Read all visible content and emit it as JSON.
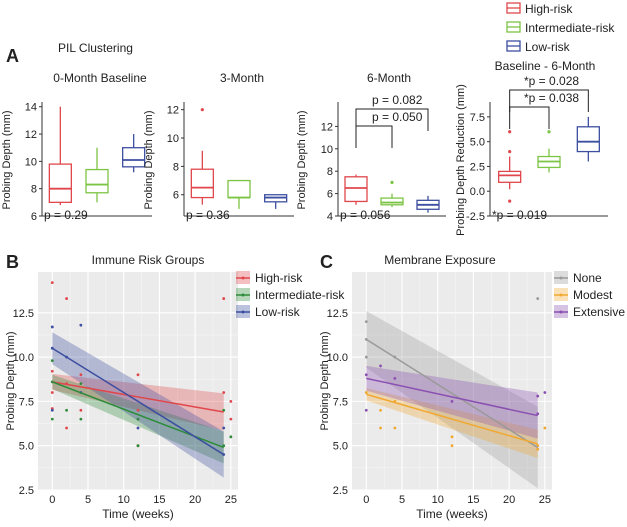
{
  "panel_letters": {
    "a": "A",
    "b": "B",
    "c": "C"
  },
  "panel_a_title": "PIL Clustering",
  "legend_top": [
    {
      "label": "High-risk",
      "color": "#e0474c"
    },
    {
      "label": "Intermediate-risk",
      "color": "#7cc444"
    },
    {
      "label": "Low-risk",
      "color": "#3d4fa0"
    }
  ],
  "chart_data": [
    {
      "type": "box",
      "title": "0-Month Baseline",
      "ylabel": "Probing Depth (mm)",
      "ylim": [
        6,
        14.2
      ],
      "yticks": [
        6,
        8,
        10,
        12,
        14
      ],
      "groups": [
        {
          "name": "High-risk",
          "whisker_low": 6.8,
          "q1": 7.0,
          "median": 8.0,
          "q3": 9.8,
          "whisker_high": 14.0,
          "outliers": []
        },
        {
          "name": "Intermediate-risk",
          "whisker_low": 7.0,
          "q1": 7.7,
          "median": 8.3,
          "q3": 9.4,
          "whisker_high": 11.0,
          "outliers": []
        },
        {
          "name": "Low-risk",
          "whisker_low": 9.2,
          "q1": 9.6,
          "median": 10.1,
          "q3": 11.0,
          "whisker_high": 12.0,
          "outliers": []
        }
      ],
      "annotations": [
        {
          "text": "p = 0.29"
        }
      ]
    },
    {
      "type": "box",
      "title": "3-Month",
      "ylabel": "Probing Depth (mm)",
      "ylim": [
        4.5,
        12.4
      ],
      "yticks": [
        6,
        8,
        10,
        12
      ],
      "groups": [
        {
          "name": "High-risk",
          "whisker_low": 5.3,
          "q1": 5.8,
          "median": 6.5,
          "q3": 7.8,
          "whisker_high": 9.1,
          "outliers": [
            12.0
          ]
        },
        {
          "name": "Intermediate-risk",
          "whisker_low": 5.0,
          "q1": 5.8,
          "median": 5.8,
          "q3": 7.0,
          "whisker_high": 7.0,
          "outliers": []
        },
        {
          "name": "Low-risk",
          "whisker_low": 5.0,
          "q1": 5.5,
          "median": 5.8,
          "q3": 6.0,
          "whisker_high": 6.0,
          "outliers": []
        }
      ],
      "annotations": [
        {
          "text": "p = 0.36"
        }
      ]
    },
    {
      "type": "box",
      "title": "6-Month",
      "ylabel": "Probing Depth (mm)",
      "ylim": [
        4.0,
        14.0
      ],
      "yticks": [
        4,
        6,
        8,
        10,
        12
      ],
      "groups": [
        {
          "name": "High-risk",
          "whisker_low": 5.0,
          "q1": 5.3,
          "median": 6.5,
          "q3": 7.5,
          "whisker_high": 7.7,
          "outliers": []
        },
        {
          "name": "Intermediate-risk",
          "whisker_low": 4.8,
          "q1": 5.0,
          "median": 5.2,
          "q3": 5.6,
          "whisker_high": 6.0,
          "outliers": [
            7.0
          ]
        },
        {
          "name": "Low-risk",
          "whisker_low": 4.3,
          "q1": 4.6,
          "median": 5.0,
          "q3": 5.4,
          "whisker_high": 5.8,
          "outliers": []
        }
      ],
      "annotations": [
        {
          "text": "p = 0.056"
        },
        {
          "text": "p = 0.050"
        },
        {
          "text": "p = 0.082"
        }
      ]
    },
    {
      "type": "box",
      "title": "Baseline - 6-Month",
      "ylabel": "Probing Depth Reduction (mm)",
      "ylim": [
        -2.5,
        8.8
      ],
      "yticks": [
        -2.5,
        0.0,
        2.5,
        5.0,
        7.5
      ],
      "groups": [
        {
          "name": "High-risk",
          "whisker_low": 0.2,
          "q1": 0.9,
          "median": 1.6,
          "q3": 2.0,
          "whisker_high": 3.5,
          "outliers": [
            -1.0,
            4.0,
            6.0
          ]
        },
        {
          "name": "Intermediate-risk",
          "whisker_low": 1.9,
          "q1": 2.4,
          "median": 3.0,
          "q3": 3.5,
          "whisker_high": 4.3,
          "outliers": [
            6.0
          ]
        },
        {
          "name": "Low-risk",
          "whisker_low": 3.0,
          "q1": 4.0,
          "median": 5.0,
          "q3": 6.5,
          "whisker_high": 7.5,
          "outliers": []
        }
      ],
      "annotations": [
        {
          "text": "*p = 0.019"
        },
        {
          "text": "*p = 0.038"
        },
        {
          "text": "*p = 0.028"
        }
      ]
    },
    {
      "type": "scatter",
      "title": "Immune Risk Groups",
      "xlabel": "Time (weeks)",
      "ylabel": "Probing Depth (mm)",
      "xlim": [
        -2,
        26
      ],
      "ylim": [
        2.5,
        14.8
      ],
      "xticks": [
        0,
        5,
        10,
        15,
        20,
        25
      ],
      "yticks": [
        2.5,
        5.0,
        7.5,
        10.0,
        12.5
      ],
      "legend": "right",
      "series": [
        {
          "name": "High-risk",
          "color": "#e0474c",
          "fit": [
            {
              "x": 0,
              "y": 8.6
            },
            {
              "x": 24,
              "y": 6.9
            }
          ],
          "ci_halfwidth_start": 0.45,
          "ci_halfwidth_end": 1.05
        },
        {
          "name": "Intermediate-risk",
          "color": "#2e8b3a",
          "fit": [
            {
              "x": 0,
              "y": 8.6
            },
            {
              "x": 24,
              "y": 4.9
            }
          ],
          "ci_halfwidth_start": 0.4,
          "ci_halfwidth_end": 0.9
        },
        {
          "name": "Low-risk",
          "color": "#3d4fa0",
          "fit": [
            {
              "x": 0,
              "y": 10.5
            },
            {
              "x": 24,
              "y": 4.5
            }
          ],
          "ci_halfwidth_start": 0.9,
          "ci_halfwidth_end": 1.3
        }
      ],
      "points": [
        {
          "x": 0,
          "y": 14.2,
          "group": 0
        },
        {
          "x": 0,
          "y": 11.7,
          "group": 2
        },
        {
          "x": 0,
          "y": 10.5,
          "group": 2
        },
        {
          "x": 0,
          "y": 9.8,
          "group": 1
        },
        {
          "x": 0,
          "y": 9.2,
          "group": 0
        },
        {
          "x": 0,
          "y": 8.6,
          "group": 1
        },
        {
          "x": 0,
          "y": 8.0,
          "group": 0
        },
        {
          "x": 0,
          "y": 7.1,
          "group": 0
        },
        {
          "x": 0,
          "y": 7.0,
          "group": 2
        },
        {
          "x": 0,
          "y": 6.5,
          "group": 1
        },
        {
          "x": 2,
          "y": 13.3,
          "group": 0
        },
        {
          "x": 2,
          "y": 10.0,
          "group": 2
        },
        {
          "x": 2,
          "y": 8.5,
          "group": 0
        },
        {
          "x": 2,
          "y": 7.0,
          "group": 1
        },
        {
          "x": 2,
          "y": 6.0,
          "group": 0
        },
        {
          "x": 4,
          "y": 11.8,
          "group": 2
        },
        {
          "x": 4,
          "y": 9.0,
          "group": 0
        },
        {
          "x": 4,
          "y": 8.5,
          "group": 1
        },
        {
          "x": 4,
          "y": 8.0,
          "group": 2
        },
        {
          "x": 4,
          "y": 7.0,
          "group": 0
        },
        {
          "x": 4,
          "y": 6.5,
          "group": 1
        },
        {
          "x": 12,
          "y": 9.0,
          "group": 0
        },
        {
          "x": 12,
          "y": 7.0,
          "group": 0
        },
        {
          "x": 12,
          "y": 6.5,
          "group": 1
        },
        {
          "x": 12,
          "y": 6.0,
          "group": 2
        },
        {
          "x": 12,
          "y": 5.0,
          "group": 0
        },
        {
          "x": 12,
          "y": 5.0,
          "group": 1
        },
        {
          "x": 24,
          "y": 13.3,
          "group": 0
        },
        {
          "x": 24,
          "y": 8.0,
          "group": 0
        },
        {
          "x": 24,
          "y": 7.0,
          "group": 1
        },
        {
          "x": 24,
          "y": 6.0,
          "group": 2
        },
        {
          "x": 24,
          "y": 5.0,
          "group": 1
        },
        {
          "x": 24,
          "y": 4.5,
          "group": 2
        },
        {
          "x": 25,
          "y": 7.5,
          "group": 0
        },
        {
          "x": 25,
          "y": 6.5,
          "group": 0
        },
        {
          "x": 25,
          "y": 5.5,
          "group": 1
        }
      ]
    },
    {
      "type": "scatter",
      "title": "Membrane Exposure",
      "xlabel": "Time (weeks)",
      "ylabel": "Probing Depth (mm)",
      "xlim": [
        -2,
        26
      ],
      "ylim": [
        2.5,
        14.8
      ],
      "xticks": [
        0,
        5,
        10,
        15,
        20,
        25
      ],
      "yticks": [
        2.5,
        5.0,
        7.5,
        10.0,
        12.5
      ],
      "legend": "right",
      "series": [
        {
          "name": "None",
          "color": "#9a9a9a",
          "fit": [
            {
              "x": 0,
              "y": 11.0
            },
            {
              "x": 24,
              "y": 4.9
            }
          ],
          "ci_halfwidth_start": 1.6,
          "ci_halfwidth_end": 2.3
        },
        {
          "name": "Modest",
          "color": "#f0a830",
          "fit": [
            {
              "x": 0,
              "y": 7.9
            },
            {
              "x": 24,
              "y": 5.1
            }
          ],
          "ci_halfwidth_start": 0.35,
          "ci_halfwidth_end": 0.8
        },
        {
          "name": "Extensive",
          "color": "#8a4fb0",
          "fit": [
            {
              "x": 0,
              "y": 8.8
            },
            {
              "x": 24,
              "y": 6.7
            }
          ],
          "ci_halfwidth_start": 0.7,
          "ci_halfwidth_end": 1.3
        }
      ],
      "points": [
        {
          "x": 0,
          "y": 12.0,
          "group": 0
        },
        {
          "x": 0,
          "y": 11.0,
          "group": 0
        },
        {
          "x": 0,
          "y": 10.0,
          "group": 0
        },
        {
          "x": 0,
          "y": 9.0,
          "group": 2
        },
        {
          "x": 0,
          "y": 8.0,
          "group": 1
        },
        {
          "x": 0,
          "y": 7.0,
          "group": 2
        },
        {
          "x": 2,
          "y": 9.5,
          "group": 2
        },
        {
          "x": 2,
          "y": 7.0,
          "group": 1
        },
        {
          "x": 2,
          "y": 6.0,
          "group": 1
        },
        {
          "x": 4,
          "y": 10.0,
          "group": 0
        },
        {
          "x": 4,
          "y": 8.8,
          "group": 2
        },
        {
          "x": 4,
          "y": 7.5,
          "group": 1
        },
        {
          "x": 4,
          "y": 6.0,
          "group": 1
        },
        {
          "x": 12,
          "y": 7.5,
          "group": 2
        },
        {
          "x": 12,
          "y": 5.5,
          "group": 1
        },
        {
          "x": 12,
          "y": 5.0,
          "group": 1
        },
        {
          "x": 24,
          "y": 13.3,
          "group": 0
        },
        {
          "x": 24,
          "y": 7.8,
          "group": 2
        },
        {
          "x": 24,
          "y": 6.8,
          "group": 2
        },
        {
          "x": 24,
          "y": 5.0,
          "group": 1
        },
        {
          "x": 24,
          "y": 4.8,
          "group": 1
        },
        {
          "x": 25,
          "y": 8.0,
          "group": 2
        },
        {
          "x": 25,
          "y": 6.0,
          "group": 1
        }
      ]
    }
  ]
}
